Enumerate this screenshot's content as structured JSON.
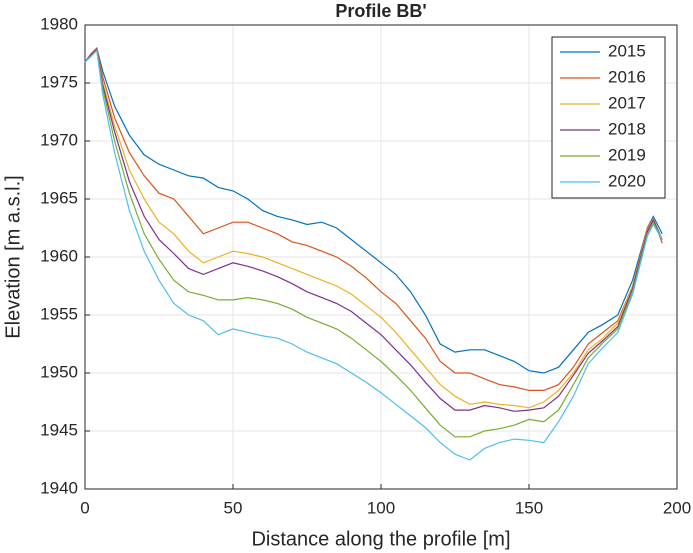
{
  "chart_data": {
    "type": "line",
    "title": "Profile BB'",
    "x_label": "Distance along the profile [m]",
    "y_label": "Elevation [m a.s.l.]",
    "x": [
      0,
      2,
      4,
      6,
      10,
      15,
      20,
      25,
      30,
      35,
      40,
      45,
      50,
      55,
      60,
      65,
      70,
      75,
      80,
      85,
      90,
      95,
      100,
      105,
      110,
      115,
      120,
      125,
      130,
      135,
      140,
      145,
      150,
      155,
      160,
      165,
      170,
      175,
      180,
      185,
      190,
      192,
      195
    ],
    "series": [
      {
        "name": "2015",
        "color": "#0072BD",
        "values": [
          1976.8,
          1977.5,
          1978,
          1976,
          1973,
          1970.5,
          1968.8,
          1968,
          1967.5,
          1967,
          1966.8,
          1966,
          1965.7,
          1965,
          1964,
          1963.5,
          1963.2,
          1962.8,
          1963,
          1962.5,
          1961.5,
          1960.5,
          1959.5,
          1958.5,
          1957,
          1955,
          1952.5,
          1951.8,
          1952,
          1952,
          1951.5,
          1951,
          1950.2,
          1950,
          1950.5,
          1952,
          1953.5,
          1954.2,
          1955,
          1958,
          1962.5,
          1963.5,
          1962
        ]
      },
      {
        "name": "2016",
        "color": "#D95319",
        "values": [
          1976.8,
          1977.5,
          1978,
          1975.5,
          1972,
          1969,
          1967,
          1965.5,
          1965,
          1963.5,
          1962,
          1962.5,
          1963,
          1963,
          1962.5,
          1962,
          1961.3,
          1961,
          1960.5,
          1960,
          1959.2,
          1958.2,
          1957,
          1956,
          1954.5,
          1953,
          1951,
          1950,
          1950,
          1949.5,
          1949,
          1948.8,
          1948.5,
          1948.5,
          1949,
          1950.5,
          1952.5,
          1953.5,
          1954.5,
          1957.5,
          1962.5,
          1963.3,
          1961.2
        ]
      },
      {
        "name": "2017",
        "color": "#EDB120",
        "values": [
          1976.8,
          1977.4,
          1977.9,
          1975,
          1971.3,
          1967.5,
          1965,
          1963,
          1962,
          1960.5,
          1959.5,
          1960,
          1960.5,
          1960.3,
          1960,
          1959.5,
          1959,
          1958.5,
          1958,
          1957.5,
          1956.8,
          1955.8,
          1954.8,
          1953.5,
          1952,
          1950.5,
          1949,
          1948,
          1947.3,
          1947.5,
          1947.3,
          1947.2,
          1947,
          1947.5,
          1948.5,
          1950,
          1952,
          1953,
          1954.3,
          1957.5,
          1962.3,
          1963.3,
          1961.5
        ]
      },
      {
        "name": "2018",
        "color": "#7E2F8E",
        "values": [
          1976.8,
          1977.4,
          1977.9,
          1974.8,
          1970.8,
          1966.5,
          1963.5,
          1961.5,
          1960.3,
          1959,
          1958.5,
          1959,
          1959.5,
          1959.2,
          1958.8,
          1958.3,
          1957.7,
          1957,
          1956.5,
          1956,
          1955.3,
          1954.3,
          1953.3,
          1952,
          1950.7,
          1949.2,
          1947.8,
          1946.8,
          1946.8,
          1947.2,
          1947,
          1946.7,
          1946.8,
          1947,
          1948,
          1949.8,
          1951.7,
          1952.8,
          1954,
          1957.3,
          1962.2,
          1963.2,
          1961.5
        ]
      },
      {
        "name": "2019",
        "color": "#77AC30",
        "values": [
          1976.8,
          1977.3,
          1977.8,
          1974.5,
          1970,
          1965.5,
          1962,
          1959.8,
          1958,
          1957,
          1956.7,
          1956.3,
          1956.3,
          1956.5,
          1956.3,
          1956,
          1955.5,
          1954.8,
          1954.3,
          1953.8,
          1953,
          1952,
          1951,
          1949.8,
          1948.5,
          1947,
          1945.5,
          1944.5,
          1944.5,
          1945,
          1945.2,
          1945.5,
          1946,
          1945.8,
          1946.8,
          1949,
          1951.3,
          1952.6,
          1953.8,
          1957,
          1962,
          1963,
          1961.5
        ]
      },
      {
        "name": "2020",
        "color": "#4DBEEE",
        "values": [
          1976.8,
          1977.3,
          1977.8,
          1974,
          1969,
          1964,
          1960.5,
          1958,
          1956,
          1955,
          1954.5,
          1953.3,
          1953.8,
          1953.5,
          1953.2,
          1953,
          1952.5,
          1951.8,
          1951.3,
          1950.8,
          1950,
          1949.2,
          1948.3,
          1947.3,
          1946.3,
          1945.3,
          1944,
          1943,
          1942.5,
          1943.5,
          1944,
          1944.3,
          1944.2,
          1944,
          1945.8,
          1948,
          1950.8,
          1952.2,
          1953.5,
          1956.8,
          1961.8,
          1962.8,
          1961.5
        ]
      }
    ],
    "xlim": [
      0,
      200
    ],
    "xticks": [
      0,
      50,
      100,
      150,
      200
    ],
    "ylim": [
      1940,
      1980
    ],
    "yticks": [
      1940,
      1945,
      1950,
      1955,
      1960,
      1965,
      1970,
      1975,
      1980
    ],
    "grid": true,
    "legend": "northeast"
  }
}
